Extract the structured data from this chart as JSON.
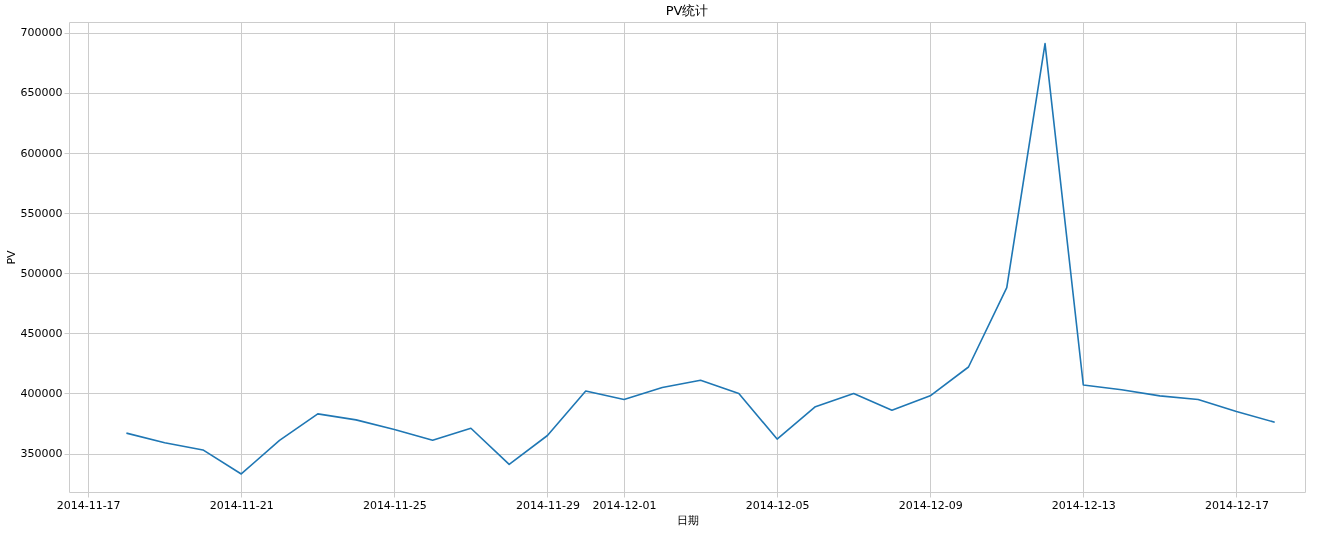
{
  "chart_data": {
    "type": "line",
    "title": "PV统计",
    "xlabel": "日期",
    "ylabel": "PV",
    "x": [
      "2014-11-18",
      "2014-11-19",
      "2014-11-20",
      "2014-11-21",
      "2014-11-22",
      "2014-11-23",
      "2014-11-24",
      "2014-11-25",
      "2014-11-26",
      "2014-11-27",
      "2014-11-28",
      "2014-11-29",
      "2014-11-30",
      "2014-12-01",
      "2014-12-02",
      "2014-12-03",
      "2014-12-04",
      "2014-12-05",
      "2014-12-06",
      "2014-12-07",
      "2014-12-08",
      "2014-12-09",
      "2014-12-10",
      "2014-12-11",
      "2014-12-12",
      "2014-12-13",
      "2014-12-14",
      "2014-12-15",
      "2014-12-16",
      "2014-12-17",
      "2014-12-18"
    ],
    "series": [
      {
        "color": "#1f77b4",
        "values": [
          367000,
          359000,
          353000,
          333000,
          361000,
          383000,
          378000,
          370000,
          361000,
          371000,
          341000,
          365000,
          402000,
          395000,
          405000,
          411000,
          400000,
          362000,
          389000,
          400000,
          386000,
          398000,
          422000,
          488000,
          691000,
          407000,
          403000,
          398000,
          395000,
          385000,
          376000
        ]
      }
    ],
    "xlim": [
      "2014-11-16T12:00",
      "2014-12-18T19:00"
    ],
    "xticks": [
      "2014-11-17",
      "2014-11-21",
      "2014-11-25",
      "2014-11-29",
      "2014-12-01",
      "2014-12-05",
      "2014-12-09",
      "2014-12-13",
      "2014-12-17"
    ],
    "ylim": [
      318000,
      709000
    ],
    "yticks": [
      350000,
      400000,
      450000,
      500000,
      550000,
      600000,
      650000,
      700000
    ],
    "grid": true,
    "marker": "none",
    "line_style": "solid"
  }
}
